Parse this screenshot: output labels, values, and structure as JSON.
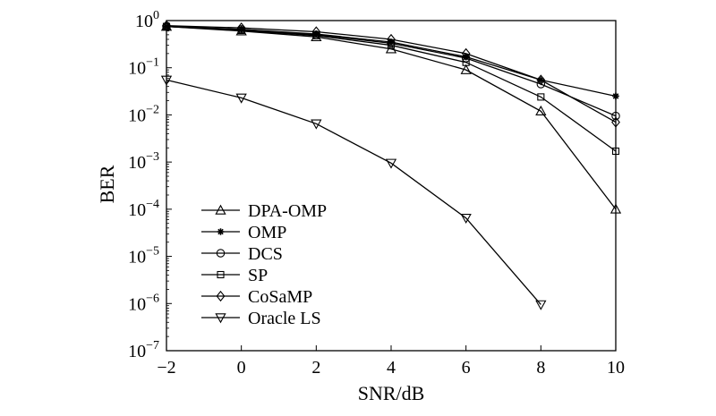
{
  "chart_data": {
    "type": "line",
    "xlabel": "SNR/dB",
    "ylabel": "BER",
    "xlim": [
      -2,
      10
    ],
    "ylim": [
      1e-07,
      1
    ],
    "yscale": "log",
    "x_ticks": [
      "−2",
      "0",
      "2",
      "4",
      "6",
      "8",
      "10"
    ],
    "x_tick_values": [
      -2,
      0,
      2,
      4,
      6,
      8,
      10
    ],
    "y_ticks": [
      {
        "base": "10",
        "exp": "0"
      },
      {
        "base": "10",
        "exp": "−1"
      },
      {
        "base": "10",
        "exp": "−2"
      },
      {
        "base": "10",
        "exp": "−3"
      },
      {
        "base": "10",
        "exp": "−4"
      },
      {
        "base": "10",
        "exp": "−5"
      },
      {
        "base": "10",
        "exp": "−6"
      },
      {
        "base": "10",
        "exp": "−7"
      }
    ],
    "y_tick_values": [
      1,
      0.1,
      0.01,
      0.001,
      0.0001,
      1e-05,
      1e-06,
      1e-07
    ],
    "grid": false,
    "legend_position": "lower-left",
    "series": [
      {
        "name": "DPA-OMP",
        "marker": "triangle-up",
        "x": [
          -2,
          0,
          2,
          4,
          6,
          8,
          10
        ],
        "y": [
          0.75,
          0.6,
          0.45,
          0.25,
          0.09,
          0.012,
          0.0001
        ]
      },
      {
        "name": "OMP",
        "marker": "asterisk",
        "x": [
          -2,
          0,
          2,
          4,
          6,
          8,
          10
        ],
        "y": [
          0.75,
          0.65,
          0.52,
          0.35,
          0.17,
          0.055,
          0.025
        ]
      },
      {
        "name": "DCS",
        "marker": "circle",
        "x": [
          -2,
          0,
          2,
          4,
          6,
          8,
          10
        ],
        "y": [
          0.75,
          0.65,
          0.5,
          0.33,
          0.16,
          0.045,
          0.0095
        ]
      },
      {
        "name": "SP",
        "marker": "square",
        "x": [
          -2,
          0,
          2,
          4,
          6,
          8,
          10
        ],
        "y": [
          0.75,
          0.62,
          0.48,
          0.3,
          0.13,
          0.024,
          0.0017
        ]
      },
      {
        "name": "CoSaMP",
        "marker": "diamond",
        "x": [
          -2,
          0,
          2,
          4,
          6,
          8,
          10
        ],
        "y": [
          0.78,
          0.7,
          0.58,
          0.4,
          0.2,
          0.055,
          0.007
        ]
      },
      {
        "name": "Oracle LS",
        "marker": "triangle-down",
        "x": [
          -2,
          0,
          2,
          4,
          6,
          8
        ],
        "y": [
          0.055,
          0.023,
          0.0065,
          0.00095,
          6.5e-05,
          9.5e-07
        ]
      }
    ]
  }
}
